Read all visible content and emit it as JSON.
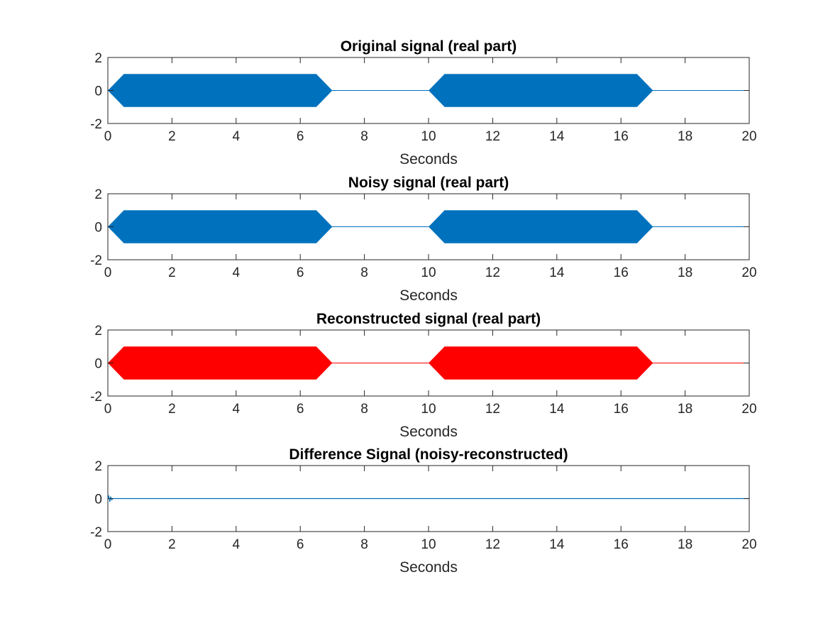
{
  "chart_data": [
    {
      "type": "area",
      "title": "Original signal (real part)",
      "xlabel": "Seconds",
      "ylabel": "",
      "xlim": [
        0,
        20
      ],
      "ylim": [
        -2,
        2
      ],
      "xticks": [
        0,
        2,
        4,
        6,
        8,
        10,
        12,
        14,
        16,
        18,
        20
      ],
      "yticks": [
        -2,
        0,
        2
      ],
      "grid": false,
      "color": "#0072BD",
      "series": [
        {
          "envelope_x": [
            0,
            0.5,
            6.5,
            7,
            10,
            10.5,
            16.5,
            17,
            20
          ],
          "envelope_upper": [
            0,
            1,
            1,
            0,
            0,
            1,
            1,
            0,
            0
          ],
          "envelope_lower": [
            0,
            -1,
            -1,
            0,
            0,
            -1,
            -1,
            0,
            0
          ]
        }
      ]
    },
    {
      "type": "area",
      "title": "Noisy signal (real part)",
      "xlabel": "Seconds",
      "ylabel": "",
      "xlim": [
        0,
        20
      ],
      "ylim": [
        -2,
        2
      ],
      "xticks": [
        0,
        2,
        4,
        6,
        8,
        10,
        12,
        14,
        16,
        18,
        20
      ],
      "yticks": [
        -2,
        0,
        2
      ],
      "grid": false,
      "color": "#0072BD",
      "series": [
        {
          "envelope_x": [
            0,
            0.5,
            6.5,
            7,
            10,
            10.5,
            16.5,
            17,
            20
          ],
          "envelope_upper": [
            0,
            1,
            1,
            0,
            0,
            1,
            1,
            0,
            0
          ],
          "envelope_lower": [
            0,
            -1,
            -1,
            0,
            0,
            -1,
            -1,
            0,
            0
          ]
        }
      ]
    },
    {
      "type": "area",
      "title": "Reconstructed signal (real part)",
      "xlabel": "Seconds",
      "ylabel": "",
      "xlim": [
        0,
        20
      ],
      "ylim": [
        -2,
        2
      ],
      "xticks": [
        0,
        2,
        4,
        6,
        8,
        10,
        12,
        14,
        16,
        18,
        20
      ],
      "yticks": [
        -2,
        0,
        2
      ],
      "grid": false,
      "color": "#FF0000",
      "series": [
        {
          "envelope_x": [
            0,
            0.5,
            6.5,
            7,
            10,
            10.5,
            16.5,
            17,
            20
          ],
          "envelope_upper": [
            0,
            1,
            1,
            0,
            0,
            1,
            1,
            0,
            0
          ],
          "envelope_lower": [
            0,
            -1,
            -1,
            0,
            0,
            -1,
            -1,
            0,
            0
          ]
        }
      ]
    },
    {
      "type": "line",
      "title": "Difference Signal (noisy-reconstructed)",
      "xlabel": "Seconds",
      "ylabel": "",
      "xlim": [
        0,
        20
      ],
      "ylim": [
        -2,
        2
      ],
      "xticks": [
        0,
        2,
        4,
        6,
        8,
        10,
        12,
        14,
        16,
        18,
        20
      ],
      "yticks": [
        -2,
        0,
        2
      ],
      "grid": false,
      "color": "#0072BD",
      "series": [
        {
          "x": [
            0,
            0.03,
            0.06,
            0.09,
            0.12,
            0.15,
            20
          ],
          "y": [
            0,
            0.15,
            -0.2,
            0.12,
            -0.08,
            0,
            0
          ]
        }
      ]
    }
  ]
}
